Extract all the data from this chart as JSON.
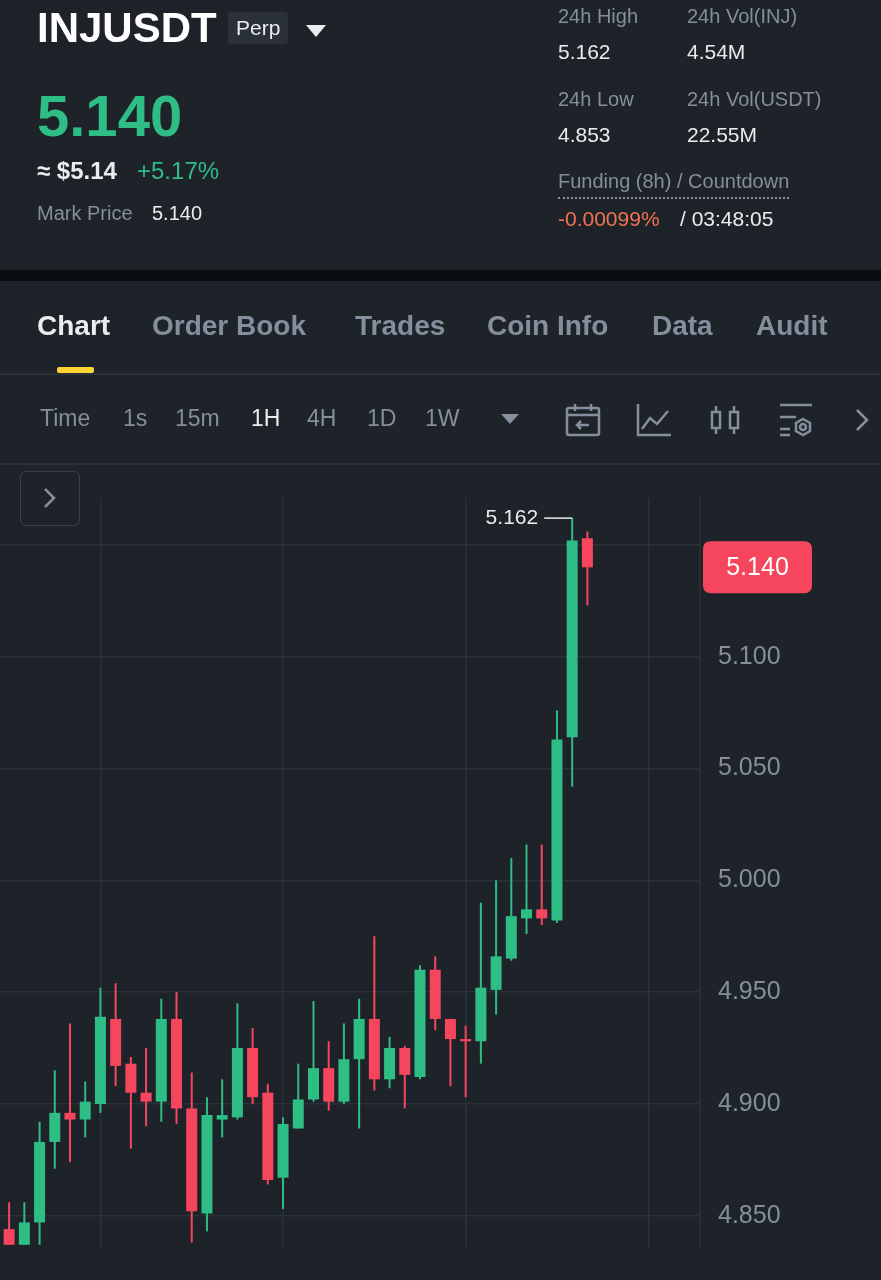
{
  "chart_data": {
    "type": "candlestick",
    "title": "INJUSDT",
    "subtitle": "Perp",
    "categories": [
      null,
      null,
      null,
      null,
      null,
      null,
      null,
      null,
      null,
      null,
      null,
      null,
      null,
      null,
      null,
      null,
      null,
      null,
      null,
      null,
      null,
      null,
      null,
      null,
      null,
      null,
      null,
      null,
      null,
      null,
      null,
      null,
      null,
      null,
      null,
      null,
      null,
      null,
      null
    ],
    "ohlc": [
      [
        4.844,
        4.856,
        4.837,
        4.837
      ],
      [
        4.837,
        4.856,
        4.837,
        4.847
      ],
      [
        4.847,
        4.892,
        4.837,
        4.883
      ],
      [
        4.883,
        4.915,
        4.871,
        4.896
      ],
      [
        4.896,
        4.936,
        4.874,
        4.893
      ],
      [
        4.893,
        4.91,
        4.885,
        4.901
      ],
      [
        4.9,
        4.952,
        4.896,
        4.939
      ],
      [
        4.938,
        4.954,
        4.908,
        4.917
      ],
      [
        4.918,
        4.921,
        4.88,
        4.905
      ],
      [
        4.905,
        4.925,
        4.89,
        4.901
      ],
      [
        4.901,
        4.947,
        4.892,
        4.938
      ],
      [
        4.938,
        4.95,
        4.891,
        4.898
      ],
      [
        4.898,
        4.914,
        4.838,
        4.852
      ],
      [
        4.851,
        4.903,
        4.843,
        4.895
      ],
      [
        4.893,
        4.911,
        4.885,
        4.895
      ],
      [
        4.894,
        4.945,
        4.893,
        4.925
      ],
      [
        4.925,
        4.934,
        4.9,
        4.903
      ],
      [
        4.905,
        4.909,
        4.864,
        4.866
      ],
      [
        4.867,
        4.894,
        4.853,
        4.891
      ],
      [
        4.889,
        4.918,
        4.889,
        4.902
      ],
      [
        4.902,
        4.946,
        4.901,
        4.916
      ],
      [
        4.916,
        4.928,
        4.897,
        4.901
      ],
      [
        4.901,
        4.936,
        4.9,
        4.92
      ],
      [
        4.92,
        4.947,
        4.889,
        4.938
      ],
      [
        4.938,
        4.975,
        4.906,
        4.911
      ],
      [
        4.911,
        4.93,
        4.907,
        4.925
      ],
      [
        4.925,
        4.926,
        4.898,
        4.913
      ],
      [
        4.912,
        4.962,
        4.911,
        4.96
      ],
      [
        4.96,
        4.966,
        4.933,
        4.938
      ],
      [
        4.938,
        4.938,
        4.908,
        4.929
      ],
      [
        4.929,
        4.935,
        4.903,
        4.928
      ],
      [
        4.928,
        4.99,
        4.918,
        4.952
      ],
      [
        4.951,
        5.0,
        4.94,
        4.966
      ],
      [
        4.965,
        5.01,
        4.964,
        4.984
      ],
      [
        4.983,
        5.016,
        4.976,
        4.987
      ],
      [
        4.987,
        5.016,
        4.98,
        4.983
      ],
      [
        4.982,
        5.076,
        4.981,
        5.063
      ],
      [
        5.064,
        5.162,
        5.042,
        5.152
      ],
      [
        5.153,
        5.156,
        5.123,
        5.14
      ]
    ],
    "colors": [
      "#f6465d",
      "#2ebd85",
      "#2ebd85",
      "#2ebd85",
      "#f6465d",
      "#2ebd85",
      "#2ebd85",
      "#f6465d",
      "#f6465d",
      "#f6465d",
      "#2ebd85",
      "#f6465d",
      "#f6465d",
      "#2ebd85",
      "#2ebd85",
      "#2ebd85",
      "#f6465d",
      "#f6465d",
      "#2ebd85",
      "#2ebd85",
      "#2ebd85",
      "#f6465d",
      "#2ebd85",
      "#2ebd85",
      "#f6465d",
      "#2ebd85",
      "#f6465d",
      "#2ebd85",
      "#f6465d",
      "#f6465d",
      "#f6465d",
      "#2ebd85",
      "#2ebd85",
      "#2ebd85",
      "#2ebd85",
      "#f6465d",
      "#2ebd85",
      "#2ebd85",
      "#f6465d"
    ],
    "ylim": [
      4.836,
      5.171
    ],
    "yticks": [
      {
        "value": 4.85,
        "label": "4.850"
      },
      {
        "value": 4.9,
        "label": "4.900"
      },
      {
        "value": 4.95,
        "label": "4.950"
      },
      {
        "value": 5.0,
        "label": "5.000"
      },
      {
        "value": 5.05,
        "label": "5.050"
      },
      {
        "value": 5.1,
        "label": "5.100"
      },
      {
        "value": 5.15,
        "label": null
      }
    ],
    "grid": true,
    "tick_labels": "y",
    "annotations": [
      "5.140",
      "≈ $5.14",
      "+5.17%",
      "Mark Price",
      "5.140",
      "24h High",
      "5.162",
      "24h Vol(INJ)",
      "4.54M",
      "24h Low",
      "4.853",
      "24h Vol(USDT)",
      "22.55M",
      "Funding (8h) / Countdown",
      "-0.00099%",
      "/ 03:48:05",
      "Chart",
      "Order Book",
      "Trades",
      "Coin Info",
      "Data",
      "Audit",
      "Time",
      "1s",
      "15m",
      "1H",
      "4H",
      "1D",
      "1W",
      "5.162",
      "5.140"
    ]
  }
}
